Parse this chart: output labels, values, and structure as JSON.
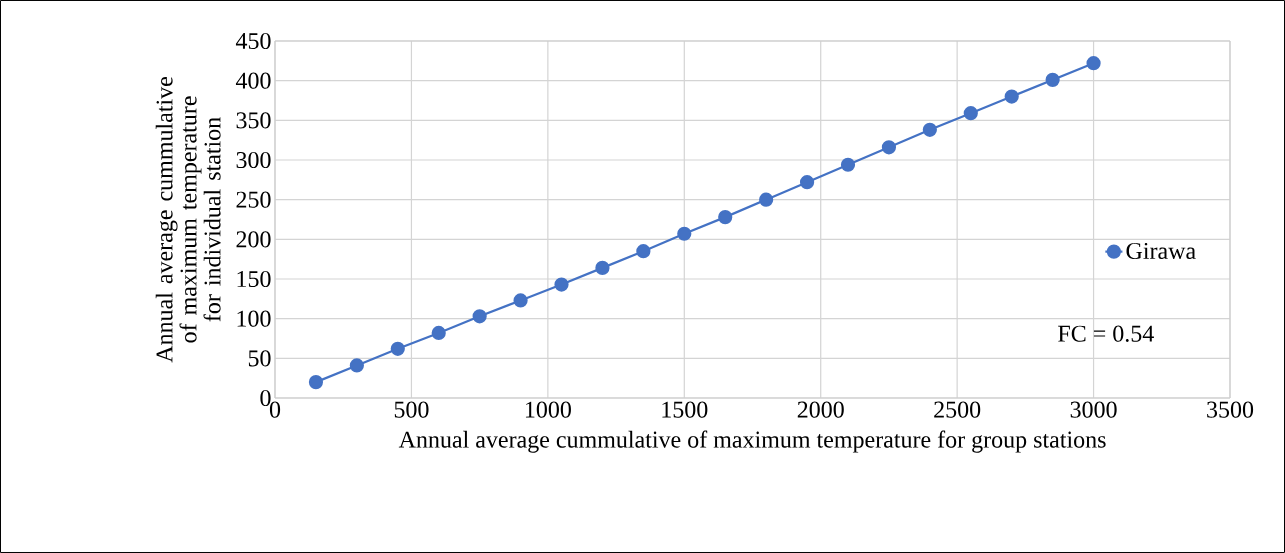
{
  "chart_data": {
    "type": "line",
    "xlabel": "Annual average cummulative of maximum temperature for group stations",
    "ylabel": "Annual average cummulative of maximum temperature for individual station",
    "x": [
      150,
      300,
      450,
      600,
      750,
      900,
      1050,
      1200,
      1350,
      1500,
      1650,
      1800,
      1950,
      2100,
      2250,
      2400,
      2550,
      2700,
      2850,
      3000
    ],
    "series": [
      {
        "name": "Girawa",
        "color": "#4472c4",
        "values": [
          20,
          41,
          62,
          82,
          103,
          123,
          143,
          164,
          185,
          207,
          228,
          250,
          272,
          294,
          316,
          338,
          359,
          380,
          401,
          422
        ]
      }
    ],
    "xlim": [
      0,
      3500
    ],
    "ylim": [
      0,
      450
    ],
    "xticks": [
      0,
      500,
      1000,
      1500,
      2000,
      2500,
      3000,
      3500
    ],
    "yticks": [
      0,
      50,
      100,
      150,
      200,
      250,
      300,
      350,
      400,
      450
    ],
    "annotations": [
      "FC = 0.54"
    ],
    "grid": true,
    "legend": "right",
    "marker": "circle",
    "line_style": "solid"
  }
}
